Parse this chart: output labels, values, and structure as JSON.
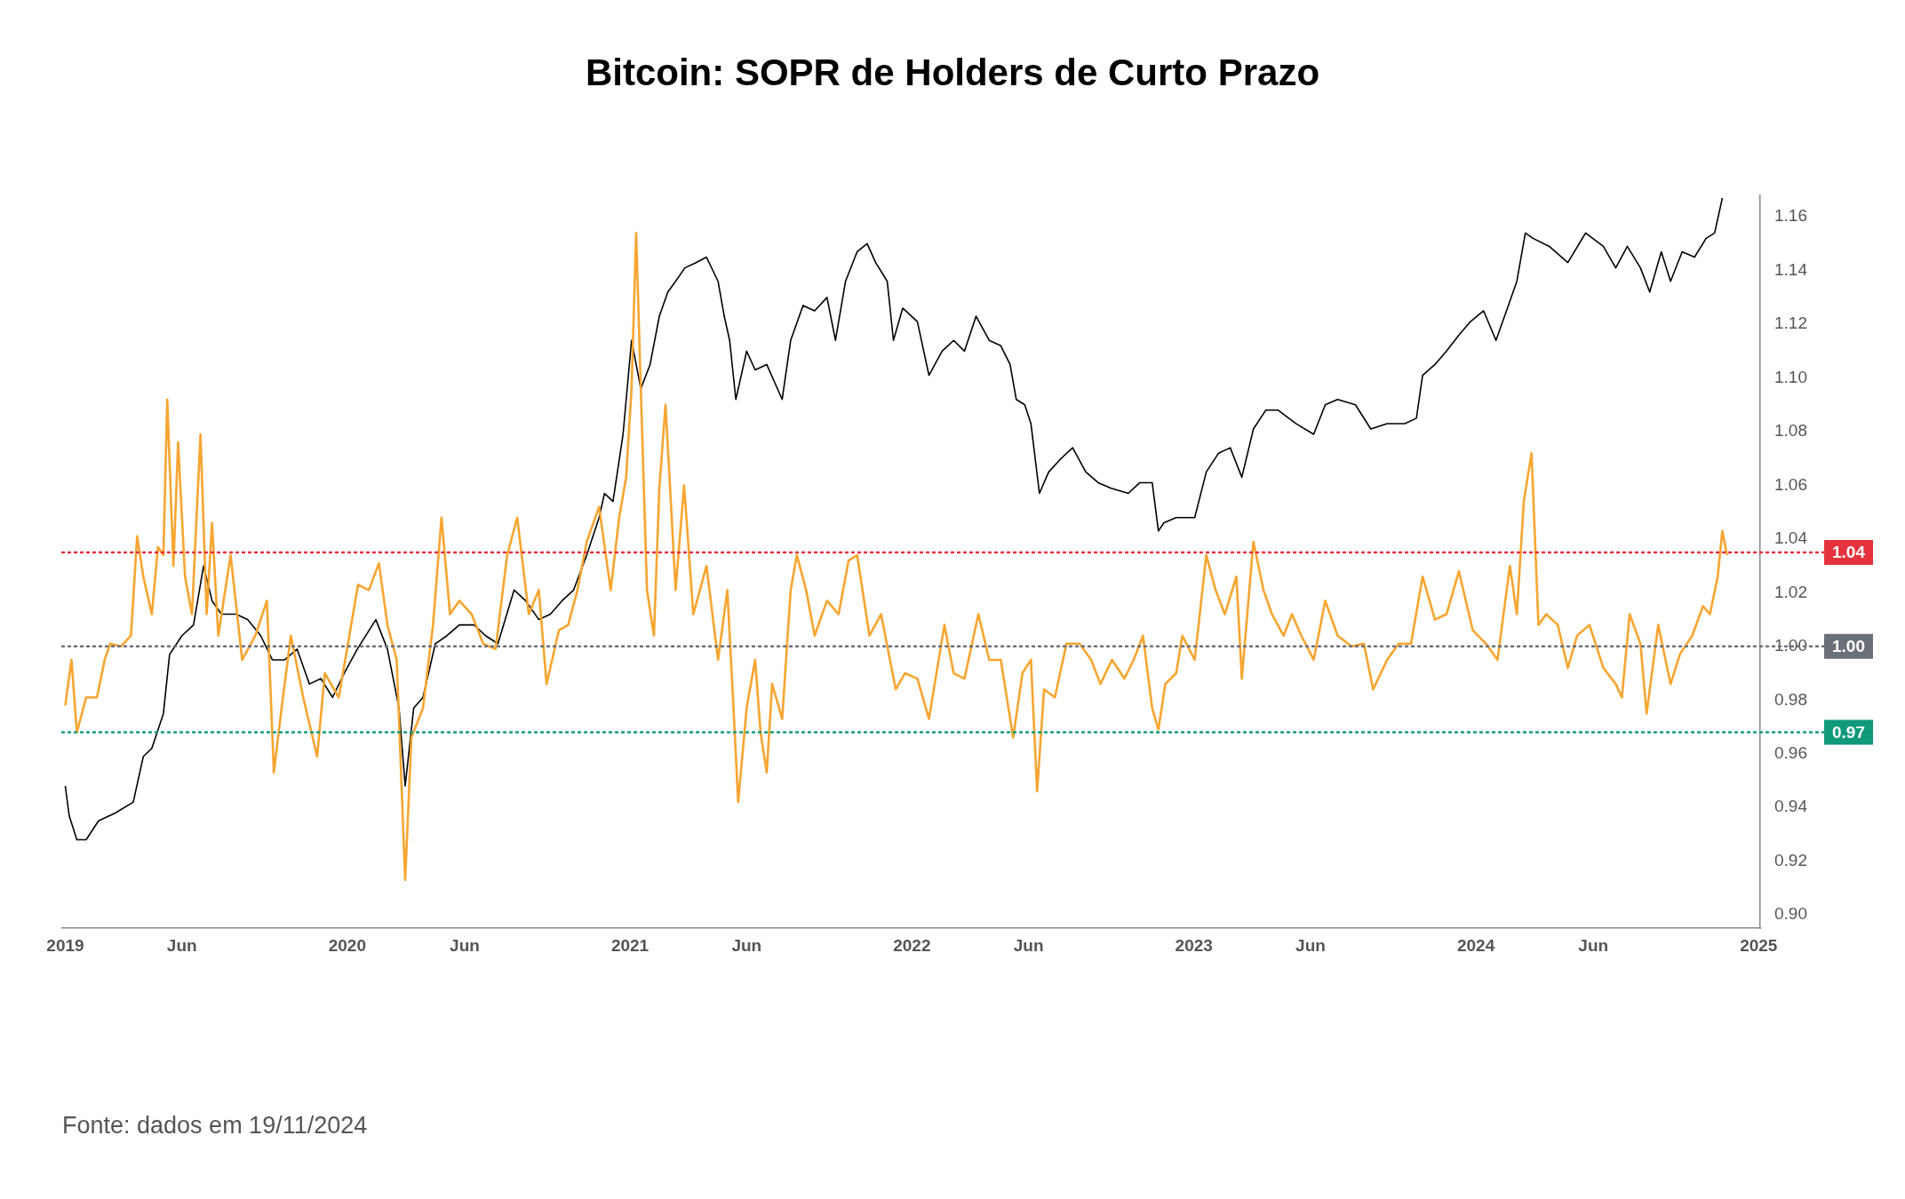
{
  "chart_data": {
    "type": "line",
    "title": "Bitcoin: SOPR de Holders de Curto Prazo",
    "annotations": [
      "Fonte: dados em 19/11/2024"
    ],
    "xlim": [
      "2018-12-28",
      "2025-01-03"
    ],
    "xticks": [
      {
        "value": "2019-01-01",
        "label": "2019"
      },
      {
        "value": "2019-06-01",
        "label": "Jun"
      },
      {
        "value": "2020-01-01",
        "label": "2020"
      },
      {
        "value": "2020-06-01",
        "label": "Jun"
      },
      {
        "value": "2021-01-01",
        "label": "2021"
      },
      {
        "value": "2021-06-01",
        "label": "Jun"
      },
      {
        "value": "2022-01-01",
        "label": "2022"
      },
      {
        "value": "2022-06-01",
        "label": "Jun"
      },
      {
        "value": "2023-01-01",
        "label": "2023"
      },
      {
        "value": "2023-06-01",
        "label": "Jun"
      },
      {
        "value": "2024-01-01",
        "label": "2024"
      },
      {
        "value": "2024-06-01",
        "label": "Jun"
      },
      {
        "value": "2025-01-01",
        "label": "2025"
      }
    ],
    "ylim": [
      0.895,
      1.168
    ],
    "yticks": [
      {
        "value": 0.9,
        "label": "0.90"
      },
      0.92,
      0.94,
      0.96,
      0.98,
      {
        "value": 1.0,
        "label": "1.00"
      },
      1.02,
      1.04,
      1.06,
      1.08,
      {
        "value": 1.1,
        "label": "1.10"
      },
      1.12,
      1.14,
      1.16
    ],
    "ref_lines": [
      {
        "axis": "y",
        "value": 1.035,
        "label": "1.04",
        "color": "#e5323c",
        "line_style": "dotted"
      },
      {
        "axis": "y",
        "value": 1.0,
        "label": "1.00",
        "color": "#6b6f78",
        "line_style": "dotted"
      },
      {
        "axis": "y",
        "value": 0.968,
        "label": "0.97",
        "color": "#0f9a7a",
        "line_style": "dotted"
      }
    ],
    "series": [
      {
        "color": "#000000",
        "x": [
          "2019-01-01",
          "2019-01-06",
          "2019-01-16",
          "2019-01-28",
          "2019-02-13",
          "2019-03-07",
          "2019-03-30",
          "2019-04-12",
          "2019-04-23",
          "2019-05-08",
          "2019-05-16",
          "2019-06-01",
          "2019-06-16",
          "2019-06-29",
          "2019-07-10",
          "2019-07-22",
          "2019-08-10",
          "2019-08-25",
          "2019-09-11",
          "2019-09-26",
          "2019-10-12",
          "2019-10-28",
          "2019-11-13",
          "2019-11-28",
          "2019-12-13",
          "2019-12-28",
          "2020-01-14",
          "2020-02-07",
          "2020-02-22",
          "2020-03-08",
          "2020-03-16",
          "2020-03-27",
          "2020-04-08",
          "2020-04-24",
          "2020-05-09",
          "2020-05-25",
          "2020-06-13",
          "2020-06-28",
          "2020-07-14",
          "2020-08-04",
          "2020-08-19",
          "2020-09-05",
          "2020-09-20",
          "2020-10-05",
          "2020-10-20",
          "2020-11-06",
          "2020-11-22",
          "2020-11-29",
          "2020-12-10",
          "2020-12-23",
          "2021-01-03",
          "2021-01-15",
          "2021-01-27",
          "2021-02-08",
          "2021-02-19",
          "2021-03-01",
          "2021-03-13",
          "2021-03-28",
          "2021-04-10",
          "2021-04-25",
          "2021-05-03",
          "2021-05-10",
          "2021-05-18",
          "2021-06-01",
          "2021-06-12",
          "2021-06-27",
          "2021-07-17",
          "2021-07-28",
          "2021-08-13",
          "2021-08-28",
          "2021-09-13",
          "2021-09-24",
          "2021-10-07",
          "2021-10-22",
          "2021-11-04",
          "2021-11-15",
          "2021-11-30",
          "2021-12-08",
          "2021-12-20",
          "2022-01-08",
          "2022-01-23",
          "2022-02-09",
          "2022-02-24",
          "2022-03-10",
          "2022-03-25",
          "2022-04-11",
          "2022-04-26",
          "2022-05-08",
          "2022-05-16",
          "2022-05-27",
          "2022-06-04",
          "2022-06-15",
          "2022-06-27",
          "2022-07-13",
          "2022-07-28",
          "2022-08-14",
          "2022-08-30",
          "2022-09-15",
          "2022-10-08",
          "2022-10-23",
          "2022-11-08",
          "2022-11-16",
          "2022-11-23",
          "2022-12-09",
          "2023-01-02",
          "2023-01-17",
          "2023-02-02",
          "2023-02-17",
          "2023-03-04",
          "2023-03-19",
          "2023-04-04",
          "2023-04-20",
          "2023-05-13",
          "2023-06-05",
          "2023-06-20",
          "2023-07-06",
          "2023-07-29",
          "2023-08-18",
          "2023-09-08",
          "2023-10-01",
          "2023-10-16",
          "2023-10-24",
          "2023-11-09",
          "2023-11-24",
          "2023-12-10",
          "2023-12-25",
          "2024-01-11",
          "2024-01-27",
          "2024-02-12",
          "2024-02-23",
          "2024-03-05",
          "2024-03-15",
          "2024-04-05",
          "2024-04-29",
          "2024-05-22",
          "2024-06-14",
          "2024-06-30",
          "2024-07-15",
          "2024-08-01",
          "2024-08-13",
          "2024-08-28",
          "2024-09-09",
          "2024-09-24",
          "2024-10-10",
          "2024-10-25",
          "2024-11-05",
          "2024-11-15"
        ],
        "values": [
          0.948,
          0.937,
          0.928,
          0.928,
          0.935,
          0.938,
          0.942,
          0.959,
          0.962,
          0.975,
          0.997,
          1.004,
          1.008,
          1.03,
          1.017,
          1.012,
          1.012,
          1.01,
          1.004,
          0.995,
          0.995,
          0.999,
          0.986,
          0.988,
          0.981,
          0.99,
          0.999,
          1.01,
          0.999,
          0.977,
          0.948,
          0.977,
          0.981,
          1.001,
          1.004,
          1.008,
          1.008,
          1.004,
          1.001,
          1.021,
          1.017,
          1.01,
          1.012,
          1.017,
          1.021,
          1.034,
          1.048,
          1.057,
          1.054,
          1.079,
          1.114,
          1.096,
          1.105,
          1.123,
          1.132,
          1.136,
          1.141,
          1.143,
          1.145,
          1.136,
          1.123,
          1.114,
          1.092,
          1.11,
          1.103,
          1.105,
          1.092,
          1.114,
          1.127,
          1.125,
          1.13,
          1.114,
          1.136,
          1.147,
          1.15,
          1.143,
          1.136,
          1.114,
          1.126,
          1.121,
          1.101,
          1.11,
          1.114,
          1.11,
          1.123,
          1.114,
          1.112,
          1.105,
          1.092,
          1.09,
          1.083,
          1.057,
          1.065,
          1.07,
          1.074,
          1.065,
          1.061,
          1.059,
          1.057,
          1.061,
          1.061,
          1.043,
          1.046,
          1.048,
          1.048,
          1.065,
          1.072,
          1.074,
          1.063,
          1.081,
          1.088,
          1.088,
          1.083,
          1.079,
          1.09,
          1.092,
          1.09,
          1.081,
          1.083,
          1.083,
          1.085,
          1.101,
          1.105,
          1.11,
          1.116,
          1.121,
          1.125,
          1.114,
          1.127,
          1.136,
          1.154,
          1.152,
          1.149,
          1.143,
          1.154,
          1.149,
          1.141,
          1.149,
          1.141,
          1.132,
          1.147,
          1.136,
          1.147,
          1.145,
          1.152,
          1.154,
          1.167
        ]
      },
      {
        "color": "#f7a530",
        "x": [
          "2019-01-01",
          "2019-01-09",
          "2019-01-16",
          "2019-01-28",
          "2019-02-11",
          "2019-02-21",
          "2019-02-28",
          "2019-03-14",
          "2019-03-27",
          "2019-04-04",
          "2019-04-12",
          "2019-04-23",
          "2019-05-01",
          "2019-05-08",
          "2019-05-13",
          "2019-05-21",
          "2019-05-27",
          "2019-06-05",
          "2019-06-14",
          "2019-06-25",
          "2019-07-03",
          "2019-07-10",
          "2019-07-18",
          "2019-08-03",
          "2019-08-18",
          "2019-09-04",
          "2019-09-19",
          "2019-09-28",
          "2019-10-08",
          "2019-10-20",
          "2019-11-05",
          "2019-11-23",
          "2019-12-03",
          "2019-12-21",
          "2020-01-15",
          "2020-01-29",
          "2020-02-11",
          "2020-02-22",
          "2020-03-05",
          "2020-03-16",
          "2020-03-24",
          "2020-04-08",
          "2020-04-21",
          "2020-05-02",
          "2020-05-13",
          "2020-05-25",
          "2020-06-10",
          "2020-06-25",
          "2020-07-11",
          "2020-07-26",
          "2020-08-08",
          "2020-08-23",
          "2020-09-05",
          "2020-09-15",
          "2020-10-01",
          "2020-10-13",
          "2020-10-25",
          "2020-11-06",
          "2020-11-22",
          "2020-12-07",
          "2020-12-18",
          "2020-12-27",
          "2021-01-03",
          "2021-01-09",
          "2021-01-15",
          "2021-01-23",
          "2021-02-01",
          "2021-02-08",
          "2021-02-16",
          "2021-02-24",
          "2021-03-01",
          "2021-03-12",
          "2021-03-24",
          "2021-04-10",
          "2021-04-25",
          "2021-05-07",
          "2021-05-15",
          "2021-05-21",
          "2021-06-01",
          "2021-06-12",
          "2021-06-19",
          "2021-06-27",
          "2021-07-04",
          "2021-07-17",
          "2021-07-28",
          "2021-08-05",
          "2021-08-17",
          "2021-08-28",
          "2021-09-13",
          "2021-09-28",
          "2021-10-11",
          "2021-10-22",
          "2021-11-07",
          "2021-11-22",
          "2021-12-11",
          "2021-12-23",
          "2022-01-08",
          "2022-01-23",
          "2022-02-12",
          "2022-02-24",
          "2022-03-10",
          "2022-03-28",
          "2022-04-11",
          "2022-04-26",
          "2022-05-12",
          "2022-05-24",
          "2022-06-04",
          "2022-06-12",
          "2022-06-21",
          "2022-07-05",
          "2022-07-20",
          "2022-08-06",
          "2022-08-21",
          "2022-09-02",
          "2022-09-17",
          "2022-10-03",
          "2022-10-15",
          "2022-10-27",
          "2022-11-08",
          "2022-11-16",
          "2022-11-25",
          "2022-12-09",
          "2022-12-17",
          "2023-01-02",
          "2023-01-17",
          "2023-01-29",
          "2023-02-10",
          "2023-02-25",
          "2023-03-04",
          "2023-03-19",
          "2023-04-01",
          "2023-04-12",
          "2023-04-27",
          "2023-05-08",
          "2023-05-20",
          "2023-06-05",
          "2023-06-20",
          "2023-07-06",
          "2023-07-24",
          "2023-08-09",
          "2023-08-21",
          "2023-09-08",
          "2023-09-23",
          "2023-10-09",
          "2023-10-24",
          "2023-11-09",
          "2023-11-24",
          "2023-12-10",
          "2023-12-28",
          "2024-01-14",
          "2024-01-29",
          "2024-02-14",
          "2024-02-23",
          "2024-03-03",
          "2024-03-13",
          "2024-03-22",
          "2024-04-01",
          "2024-04-16",
          "2024-04-29",
          "2024-05-11",
          "2024-05-27",
          "2024-06-14",
          "2024-06-30",
          "2024-07-08",
          "2024-07-18",
          "2024-08-01",
          "2024-08-09",
          "2024-08-24",
          "2024-09-09",
          "2024-09-21",
          "2024-10-07",
          "2024-10-21",
          "2024-10-30",
          "2024-11-09",
          "2024-11-15",
          "2024-11-21"
        ],
        "values": [
          0.978,
          0.995,
          0.968,
          0.981,
          0.981,
          0.995,
          1.001,
          1.0,
          1.004,
          1.041,
          1.026,
          1.012,
          1.037,
          1.034,
          1.092,
          1.03,
          1.076,
          1.026,
          1.012,
          1.079,
          1.012,
          1.046,
          1.004,
          1.034,
          0.995,
          1.004,
          1.017,
          0.953,
          0.977,
          1.004,
          0.981,
          0.959,
          0.99,
          0.981,
          1.023,
          1.021,
          1.031,
          1.008,
          0.995,
          0.913,
          0.966,
          0.977,
          1.008,
          1.048,
          1.012,
          1.017,
          1.012,
          1.001,
          0.999,
          1.034,
          1.048,
          1.012,
          1.021,
          0.986,
          1.006,
          1.008,
          1.021,
          1.039,
          1.052,
          1.021,
          1.048,
          1.063,
          1.096,
          1.154,
          1.096,
          1.021,
          1.004,
          1.059,
          1.09,
          1.048,
          1.021,
          1.06,
          1.012,
          1.03,
          0.995,
          1.021,
          0.977,
          0.942,
          0.977,
          0.995,
          0.968,
          0.953,
          0.986,
          0.973,
          1.021,
          1.034,
          1.021,
          1.004,
          1.017,
          1.012,
          1.032,
          1.034,
          1.004,
          1.012,
          0.984,
          0.99,
          0.988,
          0.973,
          1.008,
          0.99,
          0.988,
          1.012,
          0.995,
          0.995,
          0.966,
          0.99,
          0.995,
          0.946,
          0.984,
          0.981,
          1.001,
          1.001,
          0.995,
          0.986,
          0.995,
          0.988,
          0.995,
          1.004,
          0.977,
          0.969,
          0.986,
          0.99,
          1.004,
          0.995,
          1.034,
          1.021,
          1.012,
          1.026,
          0.988,
          1.039,
          1.021,
          1.012,
          1.004,
          1.012,
          1.004,
          0.995,
          1.017,
          1.004,
          1.0,
          1.001,
          0.984,
          0.995,
          1.001,
          1.001,
          1.026,
          1.01,
          1.012,
          1.028,
          1.006,
          1.001,
          0.995,
          1.03,
          1.012,
          1.054,
          1.072,
          1.008,
          1.012,
          1.008,
          0.992,
          1.004,
          1.008,
          0.992,
          0.986,
          0.981,
          1.012,
          1.001,
          0.975,
          1.008,
          0.986,
          0.997,
          1.004,
          1.015,
          1.012,
          1.026,
          1.043,
          1.034
        ]
      }
    ]
  }
}
